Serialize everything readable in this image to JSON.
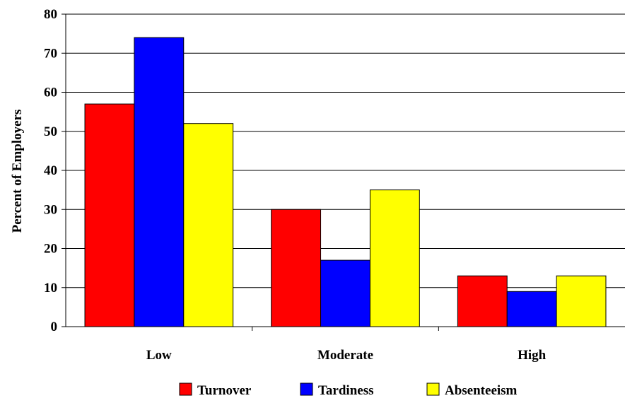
{
  "chart_data": {
    "type": "bar",
    "title": "",
    "xlabel": "",
    "ylabel": "Percent of Employers",
    "categories": [
      "Low",
      "Moderate",
      "High"
    ],
    "series": [
      {
        "name": "Turnover",
        "values": [
          57,
          30,
          13
        ],
        "color": "#ff0000"
      },
      {
        "name": "Tardiness",
        "values": [
          74,
          17,
          9
        ],
        "color": "#0000ff"
      },
      {
        "name": "Absenteeism",
        "values": [
          52,
          35,
          13
        ],
        "color": "#ffff00"
      }
    ],
    "ylim": [
      0,
      80
    ],
    "yticks": [
      "0",
      "10",
      "20",
      "30",
      "40",
      "50",
      "60",
      "70",
      "80"
    ],
    "grid": true,
    "legend": "bottom"
  }
}
